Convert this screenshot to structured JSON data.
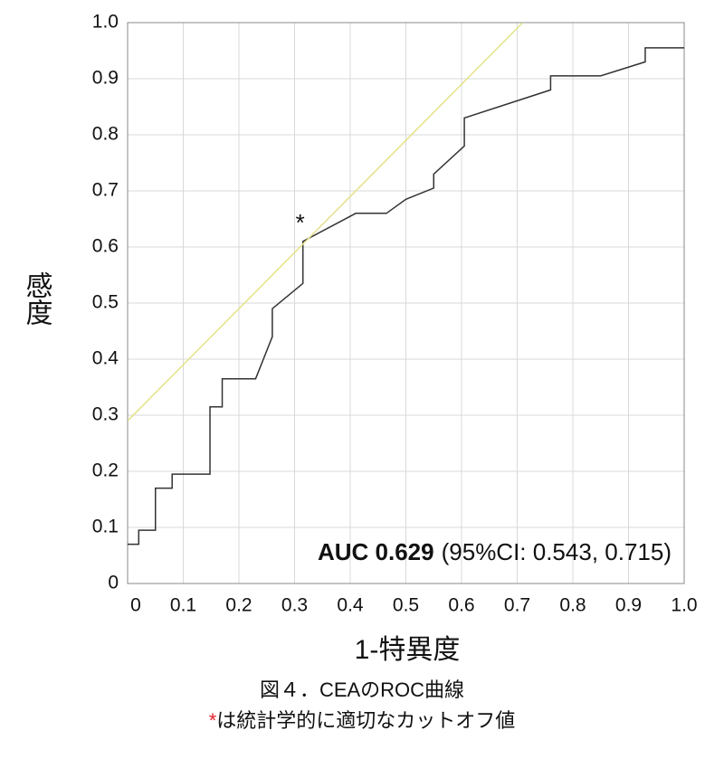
{
  "chart_data": {
    "type": "line",
    "xlabel": "1-特異度",
    "ylabel": "感度",
    "xlim": [
      0,
      1
    ],
    "ylim": [
      0,
      1
    ],
    "xticks": [
      0,
      0.1,
      0.2,
      0.3,
      0.4,
      0.5,
      0.6,
      0.7,
      0.8,
      0.9,
      {
        "value": 1,
        "label": "1.0"
      }
    ],
    "yticks": [
      0,
      0.1,
      0.2,
      0.3,
      0.4,
      0.5,
      0.6,
      0.7,
      0.8,
      0.9,
      {
        "value": 1,
        "label": "1.0"
      }
    ],
    "grid": true,
    "series": [
      {
        "color": "#333333",
        "x": [
          0,
          0.02,
          0.02,
          0.05,
          0.05,
          0.08,
          0.08,
          0.148,
          0.148,
          0.17,
          0.17,
          0.23,
          0.26,
          0.26,
          0.315,
          0.315,
          0.41,
          0.465,
          0.5,
          0.55,
          0.55,
          0.605,
          0.605,
          0.76,
          0.76,
          0.85,
          0.93,
          0.93,
          1
        ],
        "values": [
          0.07,
          0.07,
          0.095,
          0.095,
          0.17,
          0.17,
          0.195,
          0.195,
          0.315,
          0.315,
          0.365,
          0.365,
          0.44,
          0.49,
          0.535,
          0.61,
          0.66,
          0.66,
          0.685,
          0.705,
          0.73,
          0.78,
          0.83,
          0.88,
          0.905,
          0.905,
          0.93,
          0.955,
          0.955
        ]
      },
      {
        "color": "#e3e38a",
        "x": [
          0,
          0.71
        ],
        "values": [
          0.29,
          1
        ]
      }
    ],
    "cutoff_point": {
      "x": 0.315,
      "y": 0.61,
      "label": "*",
      "color": "#e8202a"
    },
    "auc_label": "AUC 0.629",
    "ci_label": "(95%CI: 0.543, 0.715)",
    "caption": "図４．CEAのROC曲線",
    "note_mark": "*",
    "note": "は統計学的に適切なカットオフ値"
  }
}
